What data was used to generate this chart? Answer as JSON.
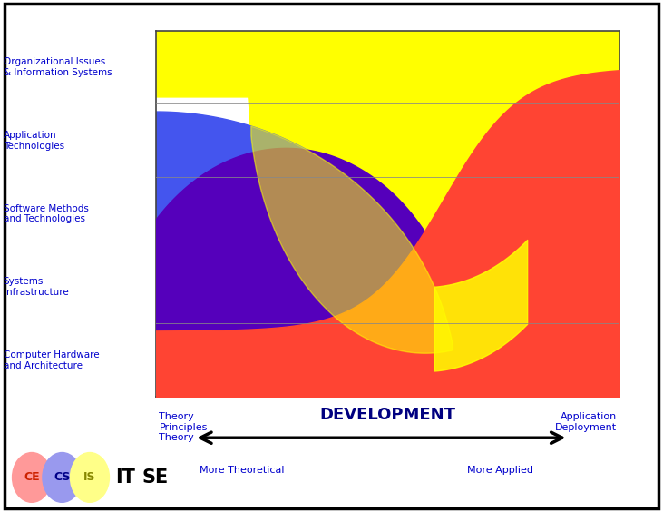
{
  "background_color": "#ffffff",
  "color_yellow": "#ffff00",
  "color_blue": "#4455ee",
  "color_purple": "#5500bb",
  "color_red": "#ff4433",
  "color_orange": "#ffaa00",
  "y_labels": [
    "Computer Hardware\nand Architecture",
    "Systems\nInfrastructure",
    "Software Methods\nand Technologies",
    "Application\nTechnologies",
    "Organizational Issues\n& Information Systems"
  ],
  "label_color": "#0000cc",
  "dev_color": "#000080",
  "x_left_label": "Theory\nPrinciples\nTheory",
  "x_right_label": "Application\nDeployment",
  "dev_label": "DEVELOPMENT",
  "more_theoretical": "More Theoretical",
  "more_applied": "More Applied",
  "ce_color": "#ff9999",
  "cs_color": "#9999ee",
  "is_color": "#ffff88"
}
